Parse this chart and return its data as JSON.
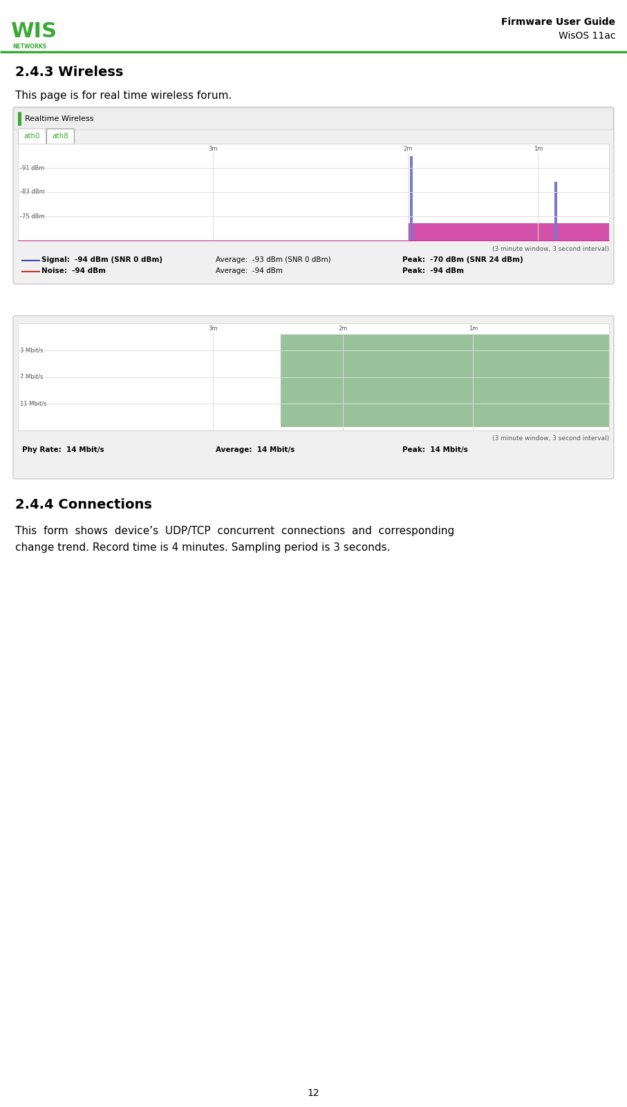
{
  "page_title_right": "Firmware User Guide",
  "page_subtitle_right": "WisOS 11ac",
  "section_243_title": "2.4.3 Wireless",
  "section_243_text": "This page is for real time wireless forum.",
  "section_244_title": "2.4.4 Connections",
  "section_244_text1": "This  form  shows  device’s  UDP/TCP  concurrent  connections  and  corresponding",
  "section_244_text2": "change trend. Record time is 4 minutes. Sampling period is 3 seconds.",
  "page_number": "12",
  "logo_color": "#3aaa35",
  "header_line_color": "#3aaa35",
  "box1_title": "Realtime Wireless",
  "box1_title_bar_color": "#3aaa35",
  "box1_bg": "#f5f5f5",
  "box1_inner_bg": "#ffffff",
  "tab1_label": "ath0",
  "tab2_label": "ath8",
  "tab1_color": "#3aaa35",
  "tab2_color": "#3aaa35",
  "chart1_grid_color": "#dddddd",
  "chart1_signal_color": "#7878cc",
  "chart1_noise_color": "#cc3399",
  "chart1_x_labels": [
    "3m",
    "2m",
    "1m"
  ],
  "chart1_y_labels": [
    "-75 dBm",
    "-83 dBm",
    "-91 dBm"
  ],
  "chart1_footnote": "(3 minute window, 3 second interval)",
  "chart1_signal_line": "Signal:  -94 dBm (SNR 0 dBm)",
  "chart1_noise_line": "Noise:  -94 dBm",
  "chart1_avg1": "Average:  -93 dBm (SNR 0 dBm)",
  "chart1_avg2": "Average:  -94 dBm",
  "chart1_peak1": "Peak:  -70 dBm (SNR 24 dBm)",
  "chart1_peak2": "Peak:  -94 dBm",
  "chart2_bg": "#f5f5f5",
  "chart2_fill_color": "#8fbc8f",
  "chart2_x_labels": [
    "3m",
    "2m",
    "1m"
  ],
  "chart2_y_labels": [
    "11 Mbit/s",
    "7 Mbit/s",
    "3 Mbit/s"
  ],
  "chart2_footnote": "(3 minute window, 3 second interval)",
  "chart2_phy": "Phy Rate:  14 Mbit/s",
  "chart2_avg": "Average:  14 Mbit/s",
  "chart2_peak": "Peak:  14 Mbit/s"
}
